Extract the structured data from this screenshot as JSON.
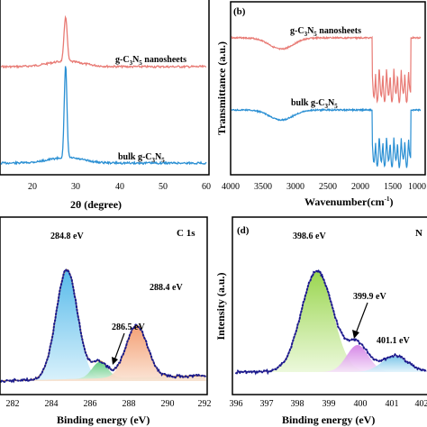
{
  "chart_data": [
    {
      "panel_label": "",
      "type": "line",
      "title": "",
      "xlabel": "2θ (degree)",
      "ylabel": "",
      "xlim": [
        10,
        60
      ],
      "xticks": [
        "20",
        "30",
        "40",
        "50",
        "60"
      ],
      "series": [
        {
          "name": "g-C3N5 nanosheets",
          "label_main": "g-C",
          "label_sub1": "3",
          "label_mid": "N",
          "label_sub2": "5",
          "label_tail": " nanosheets",
          "color": "#e87a74",
          "peak_2theta": 27.6
        },
        {
          "name": "bulk g-C3N5",
          "label_main": "bulk g-C",
          "label_sub1": "3",
          "label_mid": "N",
          "label_sub2": "5",
          "label_tail": "",
          "color": "#2a8fd3",
          "peak_2theta": 27.6
        }
      ]
    },
    {
      "panel_label": "(b)",
      "type": "line",
      "title": "",
      "xlabel": "Wavenumber(cm",
      "xlabel_sup": "-1",
      "xlabel_tail": ")",
      "ylabel": "Transmittance (a.u.)",
      "xlim": [
        4000,
        1000
      ],
      "xticks": [
        "4000",
        "3500",
        "3000",
        "2500",
        "2000",
        "1500",
        "1000"
      ],
      "series": [
        {
          "name": "g-C3N5 nanosheets",
          "label_main": "g-C",
          "label_sub1": "3",
          "label_mid": "N",
          "label_sub2": "5",
          "label_tail": " nanosheets",
          "color": "#e87a74"
        },
        {
          "name": "bulk g-C3N5",
          "label_main": "bulk g-C",
          "label_sub1": "3",
          "label_mid": "N",
          "label_sub2": "5",
          "label_tail": "",
          "color": "#2a8fd3"
        }
      ]
    },
    {
      "panel_label": "C 1s",
      "type": "line",
      "title": "C 1s",
      "xlabel": "Binding energy (eV)",
      "ylabel": "",
      "xlim": [
        281,
        292
      ],
      "xticks": [
        "282",
        "284",
        "286",
        "288",
        "290",
        "292"
      ],
      "peaks": [
        {
          "label": "284.8 eV",
          "center": 284.8,
          "height": 0.8,
          "color": "#55b8e6"
        },
        {
          "label": "286.5 eV",
          "center": 286.5,
          "height": 0.12,
          "color": "#6fce86"
        },
        {
          "label": "288.4 eV",
          "center": 288.4,
          "height": 0.38,
          "color": "#f0a070"
        }
      ]
    },
    {
      "panel_label": "(d)",
      "type": "line",
      "title": "N",
      "xlabel": "Binding energy (eV)",
      "ylabel": "Intensity (a.u.)",
      "xlim": [
        396,
        402.5
      ],
      "xticks": [
        "396",
        "397",
        "398",
        "399",
        "400",
        "401",
        "402"
      ],
      "peaks": [
        {
          "label": "398.6 eV",
          "center": 398.6,
          "height": 0.75,
          "color": "#9ad84a"
        },
        {
          "label": "399.9 eV",
          "center": 399.9,
          "height": 0.2,
          "color": "#d78ae6"
        },
        {
          "label": "401.1 eV",
          "center": 401.1,
          "height": 0.12,
          "color": "#7ec7e8"
        }
      ]
    }
  ]
}
